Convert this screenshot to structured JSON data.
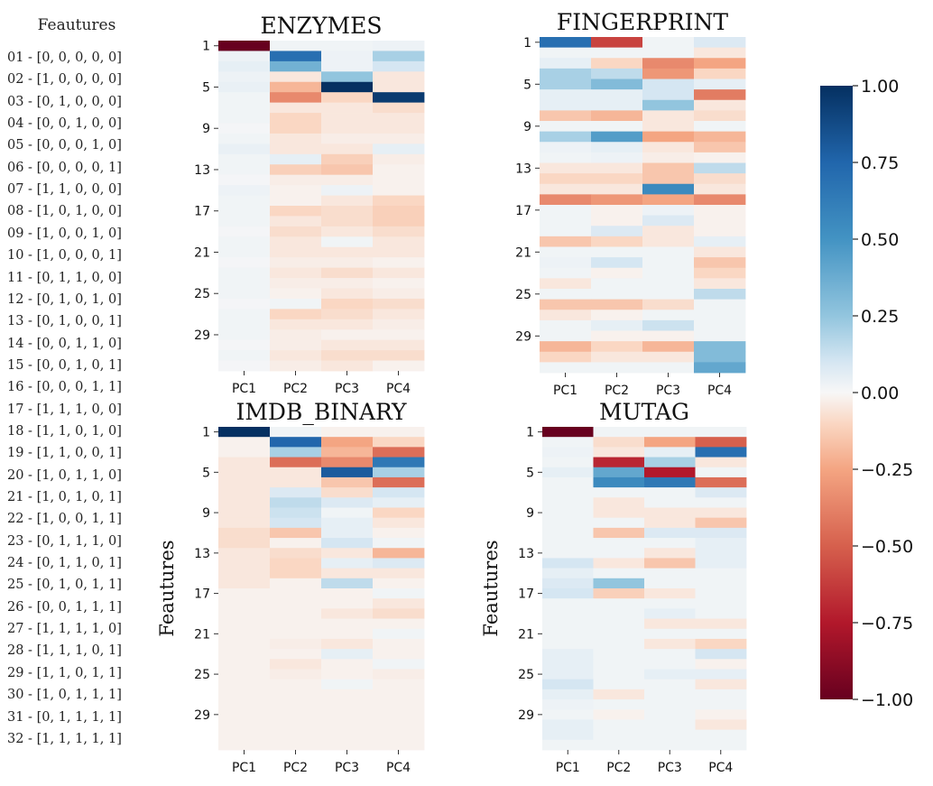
{
  "feature_legend": {
    "title": "Feautures",
    "items": [
      "01 - [0, 0, 0, 0, 0]",
      "02 - [1, 0, 0, 0, 0]",
      "03 - [0, 1, 0, 0, 0]",
      "04 - [0, 0, 1, 0, 0]",
      "05 - [0, 0, 0, 1, 0]",
      "06 - [0, 0, 0, 0, 1]",
      "07 - [1, 1, 0, 0, 0]",
      "08 - [1, 0, 1, 0, 0]",
      "09 - [1, 0, 0, 1, 0]",
      "10 - [1, 0, 0, 0, 1]",
      "11 - [0, 1, 1, 0, 0]",
      "12 - [0, 1, 0, 1, 0]",
      "13 - [0, 1, 0, 0, 1]",
      "14 - [0, 0, 1, 1, 0]",
      "15 - [0, 0, 1, 0, 1]",
      "16 - [0, 0, 0, 1, 1]",
      "17 - [1, 1, 1, 0, 0]",
      "18 - [1, 1, 0, 1, 0]",
      "19 - [1, 1, 0, 0, 1]",
      "20 - [1, 0, 1, 1, 0]",
      "21 - [1, 0, 1, 0, 1]",
      "22 - [1, 0, 0, 1, 1]",
      "23 - [0, 1, 1, 1, 0]",
      "24 - [0, 1, 1, 0, 1]",
      "25 - [0, 1, 0, 1, 1]",
      "26 - [0, 0, 1, 1, 1]",
      "27 - [1, 1, 1, 1, 0]",
      "28 - [1, 1, 1, 0, 1]",
      "29 - [1, 1, 0, 1, 1]",
      "30 - [1, 0, 1, 1, 1]",
      "31 - [0, 1, 1, 1, 1]",
      "32 - [1, 1, 1, 1, 1]"
    ]
  },
  "chart_data": [
    {
      "type": "heatmap",
      "title": "ENZYMES",
      "ylabel": "",
      "xticklabels": [
        "PC1",
        "PC2",
        "PC3",
        "PC4"
      ],
      "yticklabels": [
        "1",
        "5",
        "9",
        "13",
        "17",
        "21",
        "25",
        "29"
      ],
      "values": [
        [
          -1.0,
          0.02,
          0.02,
          0.03
        ],
        [
          0.03,
          0.7,
          0.03,
          0.2
        ],
        [
          0.05,
          0.35,
          0.03,
          0.1
        ],
        [
          0.03,
          -0.05,
          0.25,
          -0.05
        ],
        [
          0.04,
          -0.2,
          1.0,
          -0.05
        ],
        [
          0.02,
          -0.35,
          -0.1,
          0.95
        ],
        [
          0.02,
          -0.05,
          -0.05,
          -0.08
        ],
        [
          0.02,
          -0.1,
          -0.05,
          -0.05
        ],
        [
          0.01,
          -0.1,
          -0.05,
          -0.05
        ],
        [
          0.02,
          -0.05,
          -0.03,
          -0.03
        ],
        [
          0.04,
          -0.05,
          -0.05,
          0.05
        ],
        [
          0.02,
          0.05,
          -0.12,
          -0.03
        ],
        [
          0.02,
          -0.12,
          -0.15,
          -0.02
        ],
        [
          0.01,
          -0.03,
          -0.03,
          -0.02
        ],
        [
          0.03,
          -0.02,
          0.03,
          -0.02
        ],
        [
          0.02,
          -0.02,
          -0.05,
          -0.1
        ],
        [
          0.02,
          -0.1,
          -0.08,
          -0.12
        ],
        [
          0.02,
          -0.05,
          -0.08,
          -0.12
        ],
        [
          0.01,
          -0.08,
          -0.05,
          -0.08
        ],
        [
          0.02,
          -0.05,
          0.02,
          -0.05
        ],
        [
          0.02,
          -0.05,
          -0.05,
          -0.05
        ],
        [
          0.01,
          -0.03,
          -0.03,
          -0.02
        ],
        [
          0.02,
          -0.05,
          -0.08,
          -0.05
        ],
        [
          0.02,
          -0.03,
          -0.03,
          -0.02
        ],
        [
          0.02,
          -0.02,
          -0.05,
          -0.03
        ],
        [
          0.01,
          0.02,
          -0.1,
          -0.08
        ],
        [
          0.02,
          -0.1,
          -0.08,
          -0.05
        ],
        [
          0.02,
          -0.05,
          -0.05,
          -0.03
        ],
        [
          0.02,
          -0.03,
          -0.02,
          -0.02
        ],
        [
          0.01,
          -0.03,
          -0.05,
          -0.05
        ],
        [
          0.02,
          -0.05,
          -0.08,
          -0.08
        ],
        [
          0.01,
          -0.03,
          -0.05,
          -0.02
        ]
      ],
      "vmin": -1,
      "vmax": 1
    },
    {
      "type": "heatmap",
      "title": "FINGERPRINT",
      "ylabel": "",
      "xticklabels": [
        "PC1",
        "PC2",
        "PC3",
        "PC4"
      ],
      "yticklabels": [
        "1",
        "5",
        "9",
        "13",
        "17",
        "21",
        "25",
        "29"
      ],
      "values": [
        [
          0.7,
          -0.6,
          0.02,
          0.08
        ],
        [
          0.02,
          0.02,
          0.02,
          -0.05
        ],
        [
          0.05,
          -0.1,
          -0.35,
          -0.25
        ],
        [
          0.2,
          0.15,
          -0.3,
          -0.1
        ],
        [
          0.2,
          0.3,
          0.1,
          0.05
        ],
        [
          0.05,
          0.05,
          0.1,
          -0.4
        ],
        [
          0.05,
          0.05,
          0.25,
          -0.05
        ],
        [
          -0.15,
          -0.2,
          -0.05,
          -0.08
        ],
        [
          0.02,
          0.02,
          -0.05,
          0.02
        ],
        [
          0.2,
          0.45,
          -0.25,
          -0.2
        ],
        [
          0.03,
          0.05,
          -0.05,
          -0.15
        ],
        [
          0.02,
          0.03,
          -0.03,
          -0.02
        ],
        [
          -0.05,
          -0.05,
          -0.15,
          0.15
        ],
        [
          -0.1,
          -0.1,
          -0.15,
          -0.08
        ],
        [
          -0.05,
          -0.05,
          0.55,
          -0.05
        ],
        [
          -0.35,
          -0.3,
          -0.25,
          -0.35
        ],
        [
          0.02,
          -0.02,
          0.03,
          -0.02
        ],
        [
          0.02,
          -0.02,
          0.08,
          -0.02
        ],
        [
          0.02,
          0.08,
          -0.05,
          -0.02
        ],
        [
          -0.15,
          -0.1,
          -0.05,
          0.05
        ],
        [
          0.02,
          0.02,
          0.02,
          -0.05
        ],
        [
          0.03,
          0.1,
          0.02,
          -0.15
        ],
        [
          0.02,
          -0.02,
          0.02,
          -0.1
        ],
        [
          -0.05,
          0.02,
          0.02,
          -0.05
        ],
        [
          0.02,
          0.02,
          0.02,
          0.15
        ],
        [
          -0.15,
          -0.15,
          -0.08,
          0.02
        ],
        [
          -0.05,
          -0.02,
          0.02,
          0.02
        ],
        [
          0.02,
          0.05,
          0.12,
          0.02
        ],
        [
          0.02,
          -0.02,
          -0.02,
          0.02
        ],
        [
          -0.2,
          -0.1,
          -0.2,
          0.3
        ],
        [
          -0.1,
          -0.05,
          -0.05,
          0.3
        ],
        [
          0.02,
          0.02,
          0.02,
          0.4
        ]
      ],
      "vmin": -1,
      "vmax": 1
    },
    {
      "type": "heatmap",
      "title": "IMDB_BINARY",
      "ylabel": "Feautures",
      "xticklabels": [
        "PC1",
        "PC2",
        "PC3",
        "PC4"
      ],
      "yticklabels": [
        "1",
        "5",
        "9",
        "13",
        "17",
        "21",
        "25",
        "29"
      ],
      "values": [
        [
          1.0,
          0.02,
          -0.02,
          -0.02
        ],
        [
          -0.02,
          0.75,
          -0.25,
          -0.1
        ],
        [
          -0.02,
          0.2,
          -0.2,
          -0.45
        ],
        [
          -0.05,
          -0.45,
          -0.35,
          0.65
        ],
        [
          -0.05,
          -0.05,
          0.8,
          0.2
        ],
        [
          -0.05,
          -0.05,
          -0.15,
          -0.45
        ],
        [
          -0.05,
          0.08,
          -0.08,
          0.1
        ],
        [
          -0.05,
          0.15,
          0.08,
          0.05
        ],
        [
          -0.05,
          0.12,
          0.02,
          -0.1
        ],
        [
          -0.05,
          0.1,
          0.05,
          -0.05
        ],
        [
          -0.08,
          -0.15,
          0.05,
          -0.02
        ],
        [
          -0.08,
          -0.02,
          0.1,
          0.02
        ],
        [
          -0.05,
          -0.08,
          -0.05,
          -0.2
        ],
        [
          -0.05,
          -0.1,
          0.05,
          0.08
        ],
        [
          -0.05,
          -0.1,
          -0.05,
          -0.05
        ],
        [
          -0.05,
          -0.02,
          0.15,
          -0.02
        ],
        [
          -0.02,
          -0.02,
          -0.02,
          0.02
        ],
        [
          -0.02,
          -0.02,
          -0.02,
          -0.05
        ],
        [
          -0.02,
          -0.02,
          -0.05,
          -0.08
        ],
        [
          -0.02,
          -0.02,
          -0.02,
          -0.02
        ],
        [
          -0.02,
          -0.02,
          -0.02,
          0.02
        ],
        [
          -0.02,
          -0.03,
          -0.05,
          -0.02
        ],
        [
          -0.02,
          -0.02,
          0.05,
          -0.02
        ],
        [
          -0.02,
          -0.05,
          -0.02,
          0.02
        ],
        [
          -0.02,
          -0.03,
          -0.02,
          -0.03
        ],
        [
          -0.02,
          -0.02,
          0.02,
          -0.02
        ],
        [
          -0.02,
          -0.02,
          -0.02,
          -0.02
        ],
        [
          -0.02,
          -0.02,
          -0.02,
          -0.02
        ],
        [
          -0.02,
          -0.02,
          -0.02,
          -0.02
        ],
        [
          -0.02,
          -0.02,
          -0.02,
          -0.02
        ],
        [
          -0.02,
          -0.02,
          -0.02,
          -0.02
        ],
        [
          -0.02,
          -0.02,
          -0.02,
          -0.02
        ]
      ],
      "vmin": -1,
      "vmax": 1
    },
    {
      "type": "heatmap",
      "title": "MUTAG",
      "ylabel": "Feautures",
      "xticklabels": [
        "PC1",
        "PC2",
        "PC3",
        "PC4"
      ],
      "yticklabels": [
        "1",
        "5",
        "9",
        "13",
        "17",
        "21",
        "25",
        "29"
      ],
      "values": [
        [
          -1.0,
          0.02,
          0.02,
          0.02
        ],
        [
          0.02,
          -0.08,
          -0.25,
          -0.5
        ],
        [
          0.03,
          -0.05,
          0.05,
          0.7
        ],
        [
          0.02,
          -0.7,
          0.2,
          -0.05
        ],
        [
          0.05,
          0.4,
          -0.75,
          0.02
        ],
        [
          0.02,
          0.55,
          0.65,
          -0.45
        ],
        [
          0.02,
          0.02,
          0.02,
          0.08
        ],
        [
          0.02,
          -0.05,
          0.02,
          0.02
        ],
        [
          0.02,
          -0.05,
          -0.05,
          -0.05
        ],
        [
          0.02,
          0.02,
          -0.05,
          -0.15
        ],
        [
          0.02,
          -0.15,
          0.08,
          0.08
        ],
        [
          0.02,
          0.02,
          0.02,
          0.05
        ],
        [
          0.02,
          0.02,
          -0.05,
          0.05
        ],
        [
          0.1,
          -0.05,
          -0.15,
          0.05
        ],
        [
          0.05,
          0.02,
          0.02,
          0.02
        ],
        [
          0.08,
          0.25,
          0.02,
          0.02
        ],
        [
          0.1,
          -0.12,
          -0.05,
          0.02
        ],
        [
          0.02,
          0.02,
          0.02,
          0.02
        ],
        [
          0.02,
          0.02,
          0.05,
          0.02
        ],
        [
          0.02,
          0.02,
          -0.05,
          -0.05
        ],
        [
          0.02,
          0.02,
          0.02,
          0.02
        ],
        [
          0.02,
          0.02,
          -0.05,
          -0.1
        ],
        [
          0.05,
          0.02,
          0.02,
          0.1
        ],
        [
          0.05,
          0.02,
          0.02,
          -0.02
        ],
        [
          0.05,
          0.02,
          0.05,
          0.05
        ],
        [
          0.1,
          0.02,
          0.02,
          -0.05
        ],
        [
          0.05,
          -0.05,
          0.02,
          0.02
        ],
        [
          0.03,
          0.02,
          0.02,
          0.02
        ],
        [
          0.02,
          -0.02,
          0.02,
          -0.02
        ],
        [
          0.05,
          0.02,
          0.02,
          -0.05
        ],
        [
          0.05,
          0.02,
          0.02,
          0.02
        ],
        [
          0.02,
          0.02,
          0.02,
          0.02
        ]
      ],
      "vmin": -1,
      "vmax": 1
    }
  ],
  "colorbar": {
    "colormap": "RdBu",
    "ticks": [
      "1.00",
      "0.75",
      "0.50",
      "0.25",
      "0.00",
      "−0.25",
      "−0.50",
      "−0.75",
      "−1.00"
    ]
  }
}
